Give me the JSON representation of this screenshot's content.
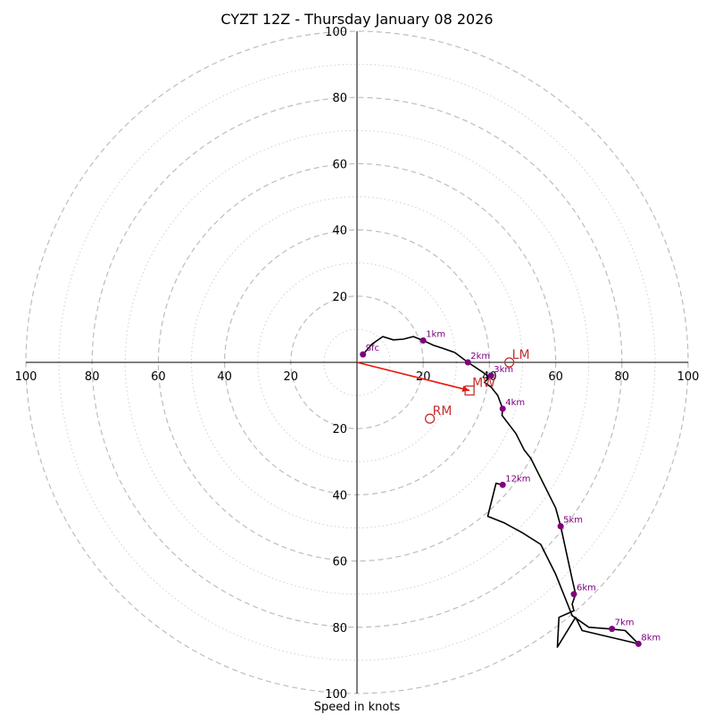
{
  "chart_data": {
    "type": "line",
    "title": "CYZT 12Z - Thursday January 08 2026",
    "xlabel": "Speed in knots",
    "ylabel": "",
    "xlim": [
      -100,
      100
    ],
    "ylim": [
      -100,
      100
    ],
    "tick_values": [
      100,
      80,
      60,
      40,
      20
    ],
    "tick_labels": {
      "x_left": [
        "100",
        "80",
        "60",
        "40",
        "20"
      ],
      "x_right": [
        "20",
        "40",
        "60",
        "80",
        "100"
      ],
      "y_top": [
        "100",
        "80",
        "60",
        "40",
        "20"
      ],
      "y_bottom": [
        "20",
        "40",
        "60",
        "80",
        "100"
      ]
    },
    "rings_major": [
      20,
      40,
      60,
      80,
      100
    ],
    "rings_minor": [
      10,
      30,
      50,
      70,
      90
    ],
    "series": [
      {
        "name": "hodograph trace",
        "color": "#000000",
        "x": [
          1.8,
          4.5,
          7.8,
          11.0,
          14.0,
          17.0,
          20.0,
          23.0,
          26.0,
          29.5,
          33.5,
          38.0,
          40.0,
          39.5,
          38.5,
          40.5,
          42.5,
          44.0,
          43.8,
          48.0,
          50.5,
          52.5,
          60.0,
          61.5,
          65.0,
          66.0,
          65.0,
          65.5,
          61.0,
          60.5,
          66.0,
          68.0,
          85.0,
          81.0,
          76.5,
          70.0,
          65.0,
          60.0,
          55.5,
          50.0,
          44.5,
          39.5,
          42.0,
          43.8
        ],
        "y": [
          2.4,
          5.5,
          7.8,
          6.8,
          7.0,
          7.8,
          6.6,
          5.2,
          4.2,
          3.0,
          0.0,
          -3.0,
          -4.5,
          -5.0,
          -6.0,
          -7.5,
          -10.0,
          -14.0,
          -16.0,
          -21.5,
          -26.5,
          -29.0,
          -44.0,
          -49.5,
          -65.5,
          -70.0,
          -73.0,
          -75.0,
          -77.0,
          -86.0,
          -77.0,
          -81.0,
          -85.0,
          -81.0,
          -80.5,
          -80.0,
          -76.5,
          -64.0,
          -55.0,
          -51.5,
          -48.5,
          -46.5,
          -36.5,
          -37.0
        ]
      }
    ],
    "height_markers": [
      {
        "label": "Sfc",
        "x": 1.8,
        "y": 2.4
      },
      {
        "label": "1km",
        "x": 20.0,
        "y": 6.6
      },
      {
        "label": "2km",
        "x": 33.5,
        "y": 0.0
      },
      {
        "label": "3km",
        "x": 40.5,
        "y": -4.0
      },
      {
        "label": "4km",
        "x": 44.0,
        "y": -14.0
      },
      {
        "label": "5km",
        "x": 61.5,
        "y": -49.5
      },
      {
        "label": "6km",
        "x": 65.5,
        "y": -70.0
      },
      {
        "label": "7km",
        "x": 77.0,
        "y": -80.5
      },
      {
        "label": "8km",
        "x": 85.0,
        "y": -85.0
      },
      {
        "label": "12km",
        "x": 44.0,
        "y": -37.0
      }
    ],
    "storm_motions": [
      {
        "label": "LM",
        "x": 46.0,
        "y": 0.0
      },
      {
        "label": "RM",
        "x": 22.0,
        "y": -17.0
      },
      {
        "label": "MW",
        "x": 34.0,
        "y": -8.5
      }
    ],
    "mean_wind_vector": {
      "x": 34.0,
      "y": -8.5,
      "color": "#e8160c"
    },
    "colors": {
      "trace": "#000000",
      "marker": "#800080",
      "storm_motion": "#c0312f",
      "arrow": "#e8160c",
      "grid": "#bdbdbd"
    }
  }
}
